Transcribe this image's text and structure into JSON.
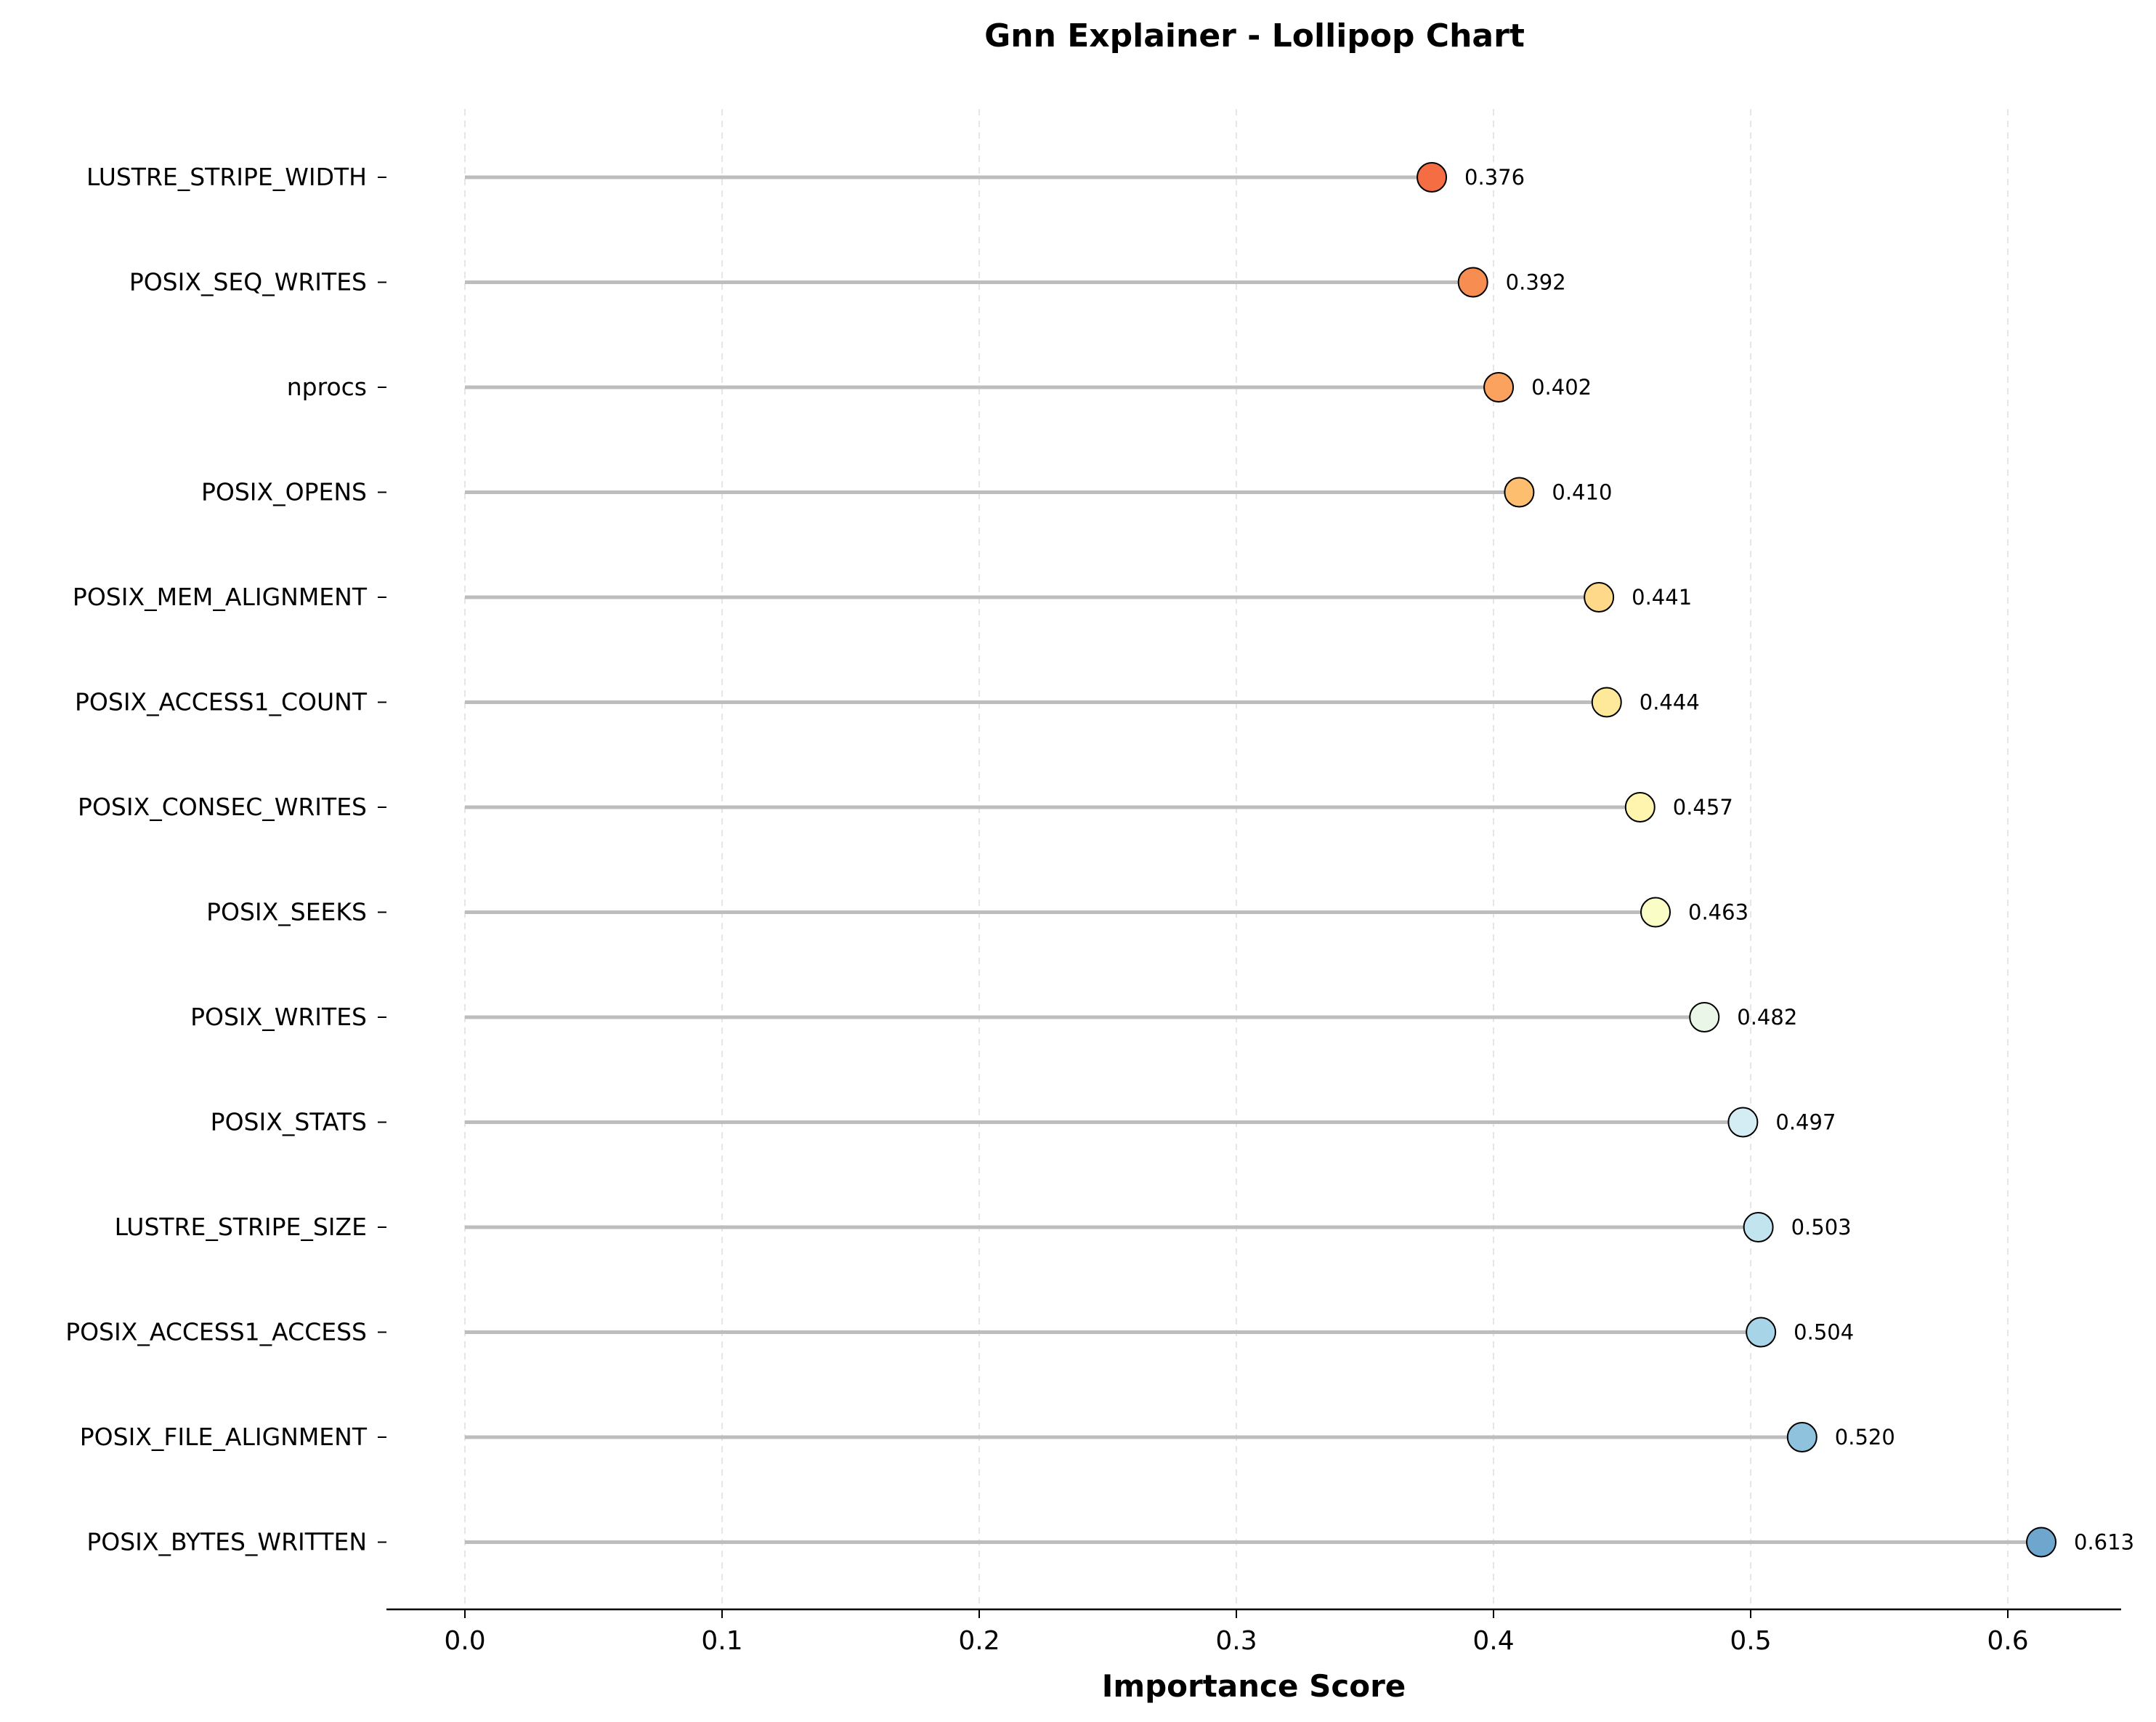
{
  "chart_data": {
    "type": "lollipop",
    "title": "Gnn Explainer - Lollipop Chart",
    "xlabel": "Importance Score",
    "ylabel": "",
    "xlim": [
      -0.03,
      0.643
    ],
    "xticks": [
      0.0,
      0.1,
      0.2,
      0.3,
      0.4,
      0.5,
      0.6
    ],
    "xtick_labels": [
      "0.0",
      "0.1",
      "0.2",
      "0.3",
      "0.4",
      "0.5",
      "0.6"
    ],
    "grid": "x-dashed",
    "categories": [
      "LUSTRE_STRIPE_WIDTH",
      "POSIX_SEQ_WRITES",
      "nprocs",
      "POSIX_OPENS",
      "POSIX_MEM_ALIGNMENT",
      "POSIX_ACCESS1_COUNT",
      "POSIX_CONSEC_WRITES",
      "POSIX_SEEKS",
      "POSIX_WRITES",
      "POSIX_STATS",
      "LUSTRE_STRIPE_SIZE",
      "POSIX_ACCESS1_ACCESS",
      "POSIX_FILE_ALIGNMENT",
      "POSIX_BYTES_WRITTEN"
    ],
    "values": [
      0.376,
      0.392,
      0.402,
      0.41,
      0.441,
      0.444,
      0.457,
      0.463,
      0.482,
      0.497,
      0.503,
      0.504,
      0.52,
      0.613
    ],
    "value_labels": [
      "0.376",
      "0.392",
      "0.402",
      "0.410",
      "0.441",
      "0.444",
      "0.457",
      "0.463",
      "0.482",
      "0.497",
      "0.503",
      "0.504",
      "0.520",
      "0.613"
    ],
    "colors": [
      "#f46d43",
      "#f88d52",
      "#fba35e",
      "#fdbe70",
      "#fed989",
      "#fee89a",
      "#fff5ae",
      "#fbfdc7",
      "#e9f6e8",
      "#d4edf4",
      "#c2e4ef",
      "#a7d4e7",
      "#8fc3dd",
      "#6ea6cd"
    ],
    "stem_color": "#bdbdbd",
    "marker_edge_color": "#000000"
  }
}
